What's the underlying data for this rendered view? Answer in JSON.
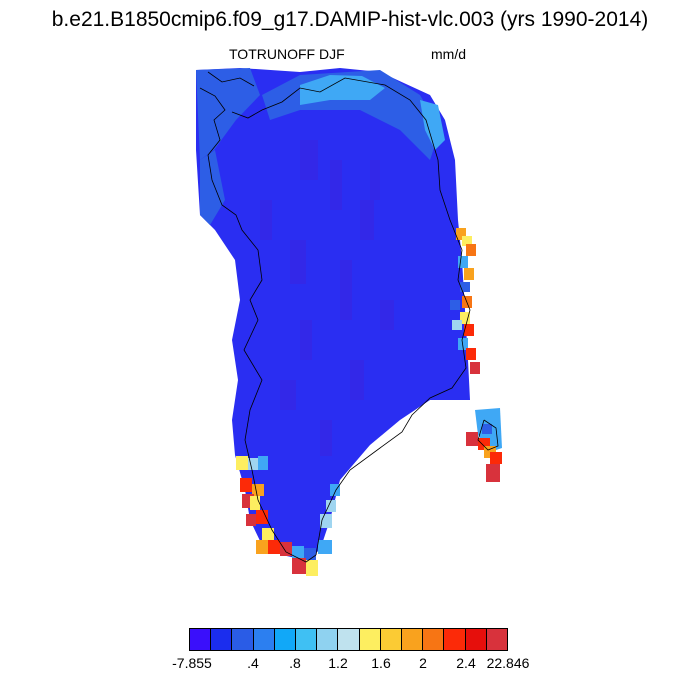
{
  "title": "b.e21.B1850cmip6.f09_g17.DAMIP-hist-vlc.003 (yrs 1990-2014)",
  "subtitle_left": "TOTRUNOFF DJF",
  "subtitle_right": "mm/d",
  "colorbar": {
    "colors": [
      "#3a0ffb",
      "#1b2dee",
      "#2a5ce6",
      "#2c7ff0",
      "#11a8f8",
      "#3fc0f3",
      "#8fd2f0",
      "#bfe2ee",
      "#fdee60",
      "#fbcb34",
      "#f9a21e",
      "#f77514",
      "#fc2a08",
      "#e60f0c",
      "#d8323c"
    ],
    "labels": [
      "-7.855",
      ".4",
      ".8",
      "1.2",
      "1.6",
      "2",
      "2.4",
      "22.846"
    ]
  },
  "map": {
    "region": "Greenland",
    "colors": {
      "interior": "#2a2ef2",
      "dark_patch": "#3328e8",
      "edge_blue": "#2d5ee6",
      "light_blue": "#3fa8f5",
      "pale_blue": "#9fd5f0",
      "yellow": "#fdee60",
      "orange": "#f9a21e",
      "red_orange": "#f77514",
      "red": "#fc2a08",
      "dark_red": "#d8323c"
    }
  }
}
